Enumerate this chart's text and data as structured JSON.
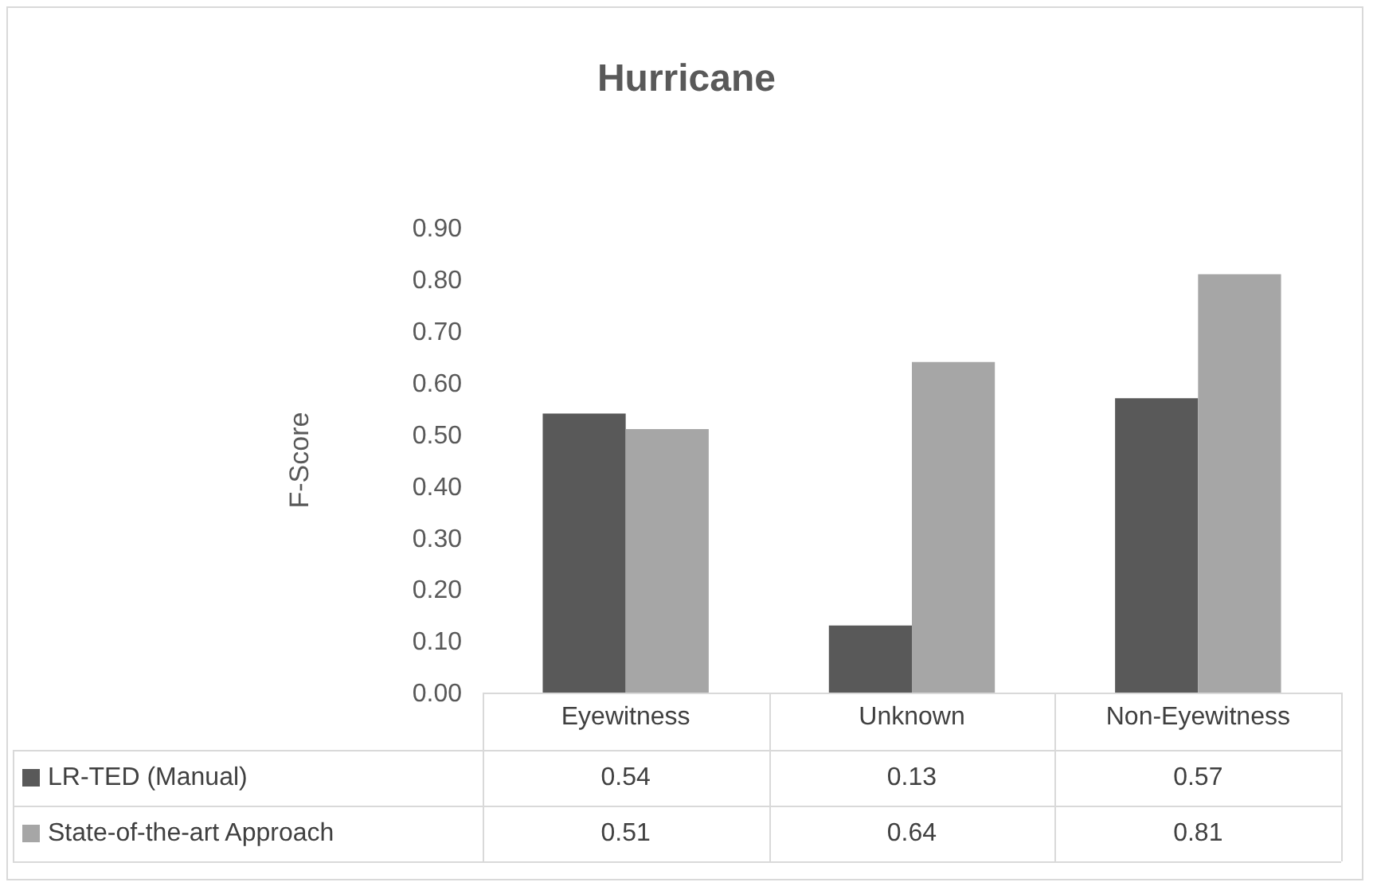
{
  "chart_data": {
    "type": "bar",
    "title": "Hurricane",
    "ylabel": "F-Score",
    "categories": [
      "Eyewitness",
      "Unknown",
      "Non-Eyewitness"
    ],
    "series": [
      {
        "name": "LR-TED (Manual)",
        "color": "#595959",
        "values": [
          0.54,
          0.13,
          0.57
        ]
      },
      {
        "name": "State-of-the-art Approach",
        "color": "#a6a6a6",
        "values": [
          0.51,
          0.64,
          0.81
        ]
      }
    ],
    "ylim": [
      0,
      0.9
    ],
    "yticks": [
      {
        "value": 0,
        "label": "0.00"
      },
      {
        "value": 0.1,
        "label": "0.10"
      },
      {
        "value": 0.2,
        "label": "0.20"
      },
      {
        "value": 0.3,
        "label": "0.30"
      },
      {
        "value": 0.4,
        "label": "0.40"
      },
      {
        "value": 0.5,
        "label": "0.50"
      },
      {
        "value": 0.6,
        "label": "0.60"
      },
      {
        "value": 0.7,
        "label": "0.70"
      },
      {
        "value": 0.8,
        "label": "0.80"
      },
      {
        "value": 0.9,
        "label": "0.90"
      }
    ],
    "data_labels": true,
    "legend": "bottom"
  }
}
